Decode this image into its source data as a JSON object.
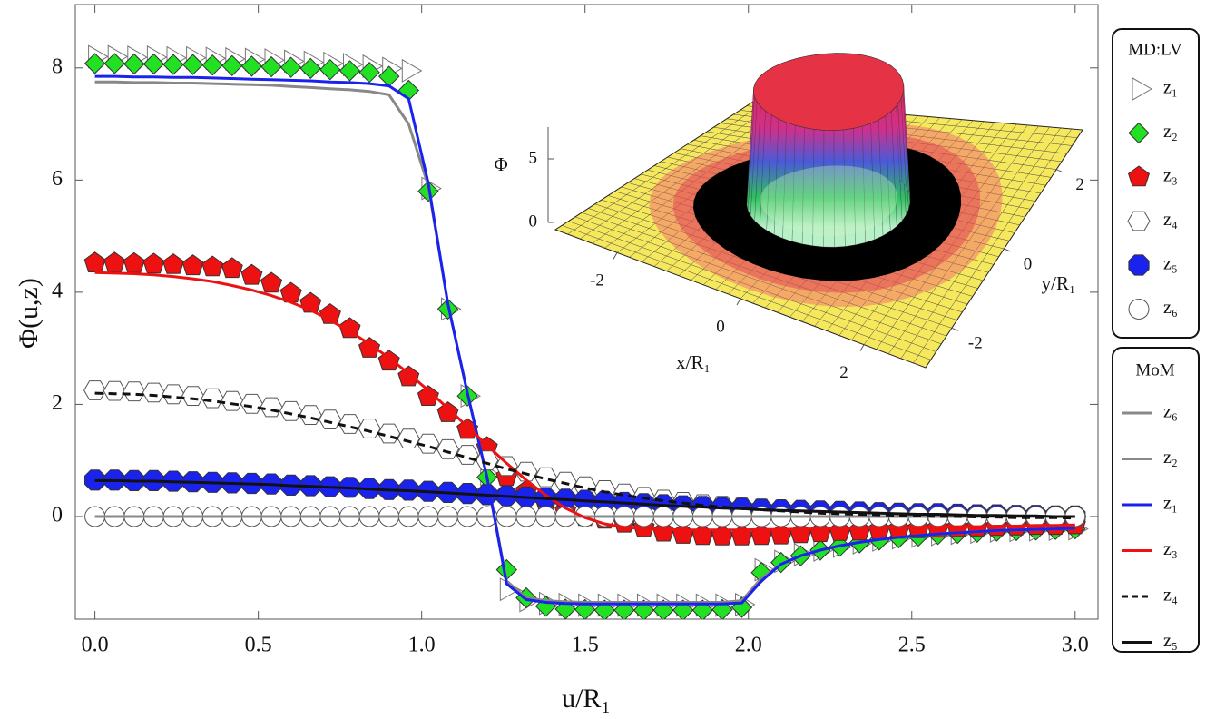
{
  "chart_data": [
    {
      "type": "line",
      "xlabel": "u/R₁",
      "ylabel": "Φ(u,z)",
      "xlim": [
        -0.06,
        3.07
      ],
      "ylim": [
        -1.83,
        9.13
      ],
      "xticks": [
        {
          "value": 0,
          "label": "0.0"
        },
        0.5,
        {
          "value": 1,
          "label": "1.0"
        },
        1.5,
        {
          "value": 2,
          "label": "2.0"
        },
        2.5,
        {
          "value": 3,
          "label": "3.0"
        }
      ],
      "yticks": [
        0,
        2,
        4,
        6,
        8
      ],
      "legend_titles": [
        "MD:LV",
        "MoM"
      ],
      "x": [
        0,
        0.06,
        0.12,
        0.18,
        0.24,
        0.3,
        0.36,
        0.42,
        0.48,
        0.54,
        0.6,
        0.66,
        0.72,
        0.78,
        0.84,
        0.9,
        0.96,
        1.02,
        1.08,
        1.14,
        1.2,
        1.26,
        1.32,
        1.38,
        1.44,
        1.5,
        1.56,
        1.62,
        1.68,
        1.74,
        1.8,
        1.86,
        1.92,
        1.98,
        2.04,
        2.1,
        2.16,
        2.22,
        2.28,
        2.34,
        2.4,
        2.46,
        2.52,
        2.58,
        2.64,
        2.7,
        2.76,
        2.82,
        2.88,
        2.94,
        3.0
      ],
      "series": [
        {
          "name": "z₁",
          "legend": 0,
          "marker": "triangle",
          "color": "#ffffff",
          "edgecolor": "#777777",
          "values": [
            8.2,
            8.2,
            8.19,
            8.19,
            8.18,
            8.18,
            8.17,
            8.16,
            8.15,
            8.14,
            8.12,
            8.1,
            8.08,
            8.06,
            8.03,
            7.99,
            7.95,
            5.85,
            3.7,
            2.15,
            0.75,
            -1.3,
            -1.5,
            -1.55,
            -1.57,
            -1.58,
            -1.58,
            -1.58,
            -1.58,
            -1.58,
            -1.58,
            -1.58,
            -1.58,
            -1.57,
            -0.95,
            -0.8,
            -0.68,
            -0.6,
            -0.53,
            -0.47,
            -0.42,
            -0.38,
            -0.35,
            -0.32,
            -0.3,
            -0.28,
            -0.26,
            -0.25,
            -0.24,
            -0.23,
            -0.22
          ]
        },
        {
          "name": "z₂",
          "legend": 0,
          "marker": "diamond",
          "color": "#22e022",
          "edgecolor": "#333333",
          "values": [
            8.08,
            8.08,
            8.07,
            8.07,
            8.06,
            8.06,
            8.05,
            8.04,
            8.03,
            8.02,
            8.01,
            7.99,
            7.97,
            7.95,
            7.92,
            7.85,
            7.6,
            5.8,
            3.7,
            2.15,
            0.7,
            -0.95,
            -1.45,
            -1.6,
            -1.65,
            -1.66,
            -1.67,
            -1.67,
            -1.67,
            -1.67,
            -1.67,
            -1.67,
            -1.66,
            -1.62,
            -1.0,
            -0.82,
            -0.7,
            -0.6,
            -0.53,
            -0.47,
            -0.42,
            -0.38,
            -0.35,
            -0.32,
            -0.3,
            -0.28,
            -0.26,
            -0.25,
            -0.24,
            -0.23,
            -0.22
          ]
        },
        {
          "name": "z₃",
          "legend": 0,
          "marker": "pentagon",
          "color": "#ee1111",
          "edgecolor": "#333333",
          "values": [
            4.52,
            4.52,
            4.51,
            4.5,
            4.49,
            4.47,
            4.45,
            4.42,
            4.3,
            4.16,
            3.98,
            3.8,
            3.6,
            3.35,
            3.0,
            2.77,
            2.49,
            2.14,
            1.85,
            1.55,
            1.23,
            0.71,
            0.45,
            0.25,
            0.1,
            0.0,
            -0.05,
            -0.12,
            -0.2,
            -0.28,
            -0.32,
            -0.34,
            -0.35,
            -0.35,
            -0.34,
            -0.33,
            -0.31,
            -0.29,
            -0.27,
            -0.26,
            -0.24,
            -0.23,
            -0.22,
            -0.21,
            -0.2,
            -0.19,
            -0.18,
            -0.17,
            -0.16,
            -0.16,
            -0.15
          ]
        },
        {
          "name": "z₄",
          "legend": 0,
          "marker": "hexagon",
          "color": "#ffffff",
          "edgecolor": "#555555",
          "values": [
            2.25,
            2.24,
            2.23,
            2.21,
            2.18,
            2.15,
            2.11,
            2.06,
            2.01,
            1.95,
            1.88,
            1.81,
            1.73,
            1.65,
            1.57,
            1.48,
            1.39,
            1.3,
            1.2,
            1.1,
            1.0,
            0.9,
            0.8,
            0.7,
            0.62,
            0.54,
            0.47,
            0.41,
            0.35,
            0.3,
            0.26,
            0.22,
            0.19,
            0.16,
            0.14,
            0.12,
            0.1,
            0.09,
            0.08,
            0.07,
            0.06,
            0.05,
            0.04,
            0.03,
            0.03,
            0.02,
            0.02,
            0.01,
            0.01,
            0.0,
            0.0
          ]
        },
        {
          "name": "z₅",
          "legend": 0,
          "marker": "octagon",
          "color": "#1a22ee",
          "edgecolor": "#333333",
          "values": [
            0.65,
            0.65,
            0.64,
            0.64,
            0.63,
            0.62,
            0.61,
            0.6,
            0.59,
            0.58,
            0.56,
            0.55,
            0.53,
            0.52,
            0.5,
            0.48,
            0.47,
            0.45,
            0.43,
            0.41,
            0.39,
            0.37,
            0.35,
            0.33,
            0.31,
            0.29,
            0.27,
            0.25,
            0.23,
            0.21,
            0.19,
            0.18,
            0.16,
            0.15,
            0.13,
            0.12,
            0.11,
            0.1,
            0.09,
            0.08,
            0.07,
            0.06,
            0.05,
            0.05,
            0.04,
            0.03,
            0.03,
            0.02,
            0.02,
            0.01,
            0.01
          ]
        },
        {
          "name": "z₆",
          "legend": 0,
          "marker": "circle",
          "color": "#ffffff",
          "edgecolor": "#555555",
          "values": [
            0,
            0,
            0,
            0,
            0,
            0,
            0,
            0,
            0,
            0,
            0,
            0,
            0,
            0,
            0,
            0,
            0,
            0,
            0,
            0,
            0,
            0,
            0,
            0,
            0,
            0,
            0,
            0,
            0,
            0,
            0,
            0,
            0,
            0,
            0,
            0,
            0,
            0,
            0,
            0,
            0,
            0,
            0,
            0,
            0,
            0,
            0,
            0,
            0,
            0,
            0
          ]
        },
        {
          "name": "z₆",
          "legend": 1,
          "linestyle": "solid",
          "color": "#888888",
          "values": [
            0,
            0,
            0,
            0,
            0,
            0,
            0,
            0,
            0,
            0,
            0,
            0,
            0,
            0,
            0,
            0,
            0,
            0,
            0,
            0,
            0,
            0,
            0,
            0,
            0,
            0,
            0,
            0,
            0,
            0,
            0,
            0,
            0,
            0,
            0,
            0,
            0,
            0,
            0,
            0,
            0,
            0,
            0,
            0,
            0,
            0,
            0,
            0,
            0,
            0,
            0
          ]
        },
        {
          "name": "z₂",
          "legend": 1,
          "linestyle": "solid",
          "color": "#888888",
          "values": [
            7.75,
            7.75,
            7.74,
            7.74,
            7.73,
            7.73,
            7.72,
            7.71,
            7.7,
            7.69,
            7.67,
            7.65,
            7.63,
            7.61,
            7.58,
            7.52,
            7.0,
            5.9,
            3.8,
            2.2,
            0.7,
            -1.15,
            -1.45,
            -1.5,
            -1.52,
            -1.53,
            -1.53,
            -1.53,
            -1.53,
            -1.53,
            -1.53,
            -1.53,
            -1.53,
            -1.5,
            -1.1,
            -0.85,
            -0.7,
            -0.6,
            -0.52,
            -0.46,
            -0.41,
            -0.37,
            -0.34,
            -0.31,
            -0.29,
            -0.27,
            -0.25,
            -0.24,
            -0.23,
            -0.22,
            -0.21
          ]
        },
        {
          "name": "z₁",
          "legend": 1,
          "linestyle": "solid",
          "color": "#1a22ee",
          "values": [
            7.85,
            7.85,
            7.84,
            7.84,
            7.83,
            7.83,
            7.82,
            7.81,
            7.8,
            7.79,
            7.78,
            7.77,
            7.75,
            7.74,
            7.72,
            7.68,
            7.45,
            5.95,
            3.8,
            2.2,
            0.7,
            -1.2,
            -1.48,
            -1.53,
            -1.55,
            -1.56,
            -1.56,
            -1.56,
            -1.56,
            -1.56,
            -1.56,
            -1.56,
            -1.56,
            -1.54,
            -1.15,
            -0.85,
            -0.7,
            -0.6,
            -0.52,
            -0.46,
            -0.41,
            -0.37,
            -0.34,
            -0.31,
            -0.29,
            -0.27,
            -0.25,
            -0.24,
            -0.23,
            -0.22,
            -0.21
          ]
        },
        {
          "name": "z₃",
          "legend": 1,
          "linestyle": "solid",
          "color": "#ee1111",
          "values": [
            4.35,
            4.34,
            4.33,
            4.31,
            4.28,
            4.24,
            4.19,
            4.12,
            4.04,
            3.94,
            3.82,
            3.68,
            3.5,
            3.3,
            3.08,
            2.83,
            2.55,
            2.25,
            1.93,
            1.6,
            1.27,
            0.95,
            0.65,
            0.38,
            0.15,
            -0.02,
            -0.13,
            -0.19,
            -0.22,
            -0.23,
            -0.24,
            -0.24,
            -0.24,
            -0.24,
            -0.23,
            -0.23,
            -0.22,
            -0.22,
            -0.21,
            -0.21,
            -0.2,
            -0.2,
            -0.19,
            -0.19,
            -0.18,
            -0.18,
            -0.17,
            -0.17,
            -0.16,
            -0.16,
            -0.15
          ]
        },
        {
          "name": "z₄",
          "legend": 1,
          "linestyle": "dashed",
          "color": "#111111",
          "values": [
            2.2,
            2.19,
            2.18,
            2.16,
            2.13,
            2.1,
            2.06,
            2.01,
            1.96,
            1.9,
            1.83,
            1.76,
            1.68,
            1.6,
            1.52,
            1.43,
            1.34,
            1.25,
            1.15,
            1.05,
            0.95,
            0.85,
            0.76,
            0.67,
            0.59,
            0.51,
            0.44,
            0.38,
            0.33,
            0.28,
            0.24,
            0.2,
            0.17,
            0.14,
            0.12,
            0.1,
            0.08,
            0.06,
            0.05,
            0.04,
            0.03,
            0.02,
            0.01,
            0.0,
            0.0,
            -0.01,
            -0.01,
            -0.02,
            -0.02,
            -0.02,
            -0.03
          ]
        },
        {
          "name": "z₅",
          "legend": 1,
          "linestyle": "solid",
          "color": "#111111",
          "values": [
            0.64,
            0.64,
            0.63,
            0.63,
            0.62,
            0.61,
            0.6,
            0.59,
            0.58,
            0.57,
            0.55,
            0.54,
            0.52,
            0.51,
            0.49,
            0.47,
            0.46,
            0.44,
            0.42,
            0.4,
            0.38,
            0.36,
            0.34,
            0.32,
            0.3,
            0.28,
            0.26,
            0.24,
            0.22,
            0.2,
            0.18,
            0.17,
            0.15,
            0.14,
            0.12,
            0.11,
            0.1,
            0.09,
            0.08,
            0.07,
            0.06,
            0.05,
            0.04,
            0.04,
            0.03,
            0.02,
            0.02,
            0.01,
            0.01,
            0.0,
            0.0
          ]
        }
      ]
    },
    {
      "type": "surface",
      "xlabel": "x/R₁",
      "ylabel": "y/R₁",
      "zlabel": "Φ",
      "xlim": [
        -3,
        3
      ],
      "ylim": [
        -3,
        3
      ],
      "xticks": [
        -2,
        0,
        2
      ],
      "yticks": [
        -2,
        0,
        2
      ],
      "zticks": [
        0,
        5
      ]
    }
  ]
}
